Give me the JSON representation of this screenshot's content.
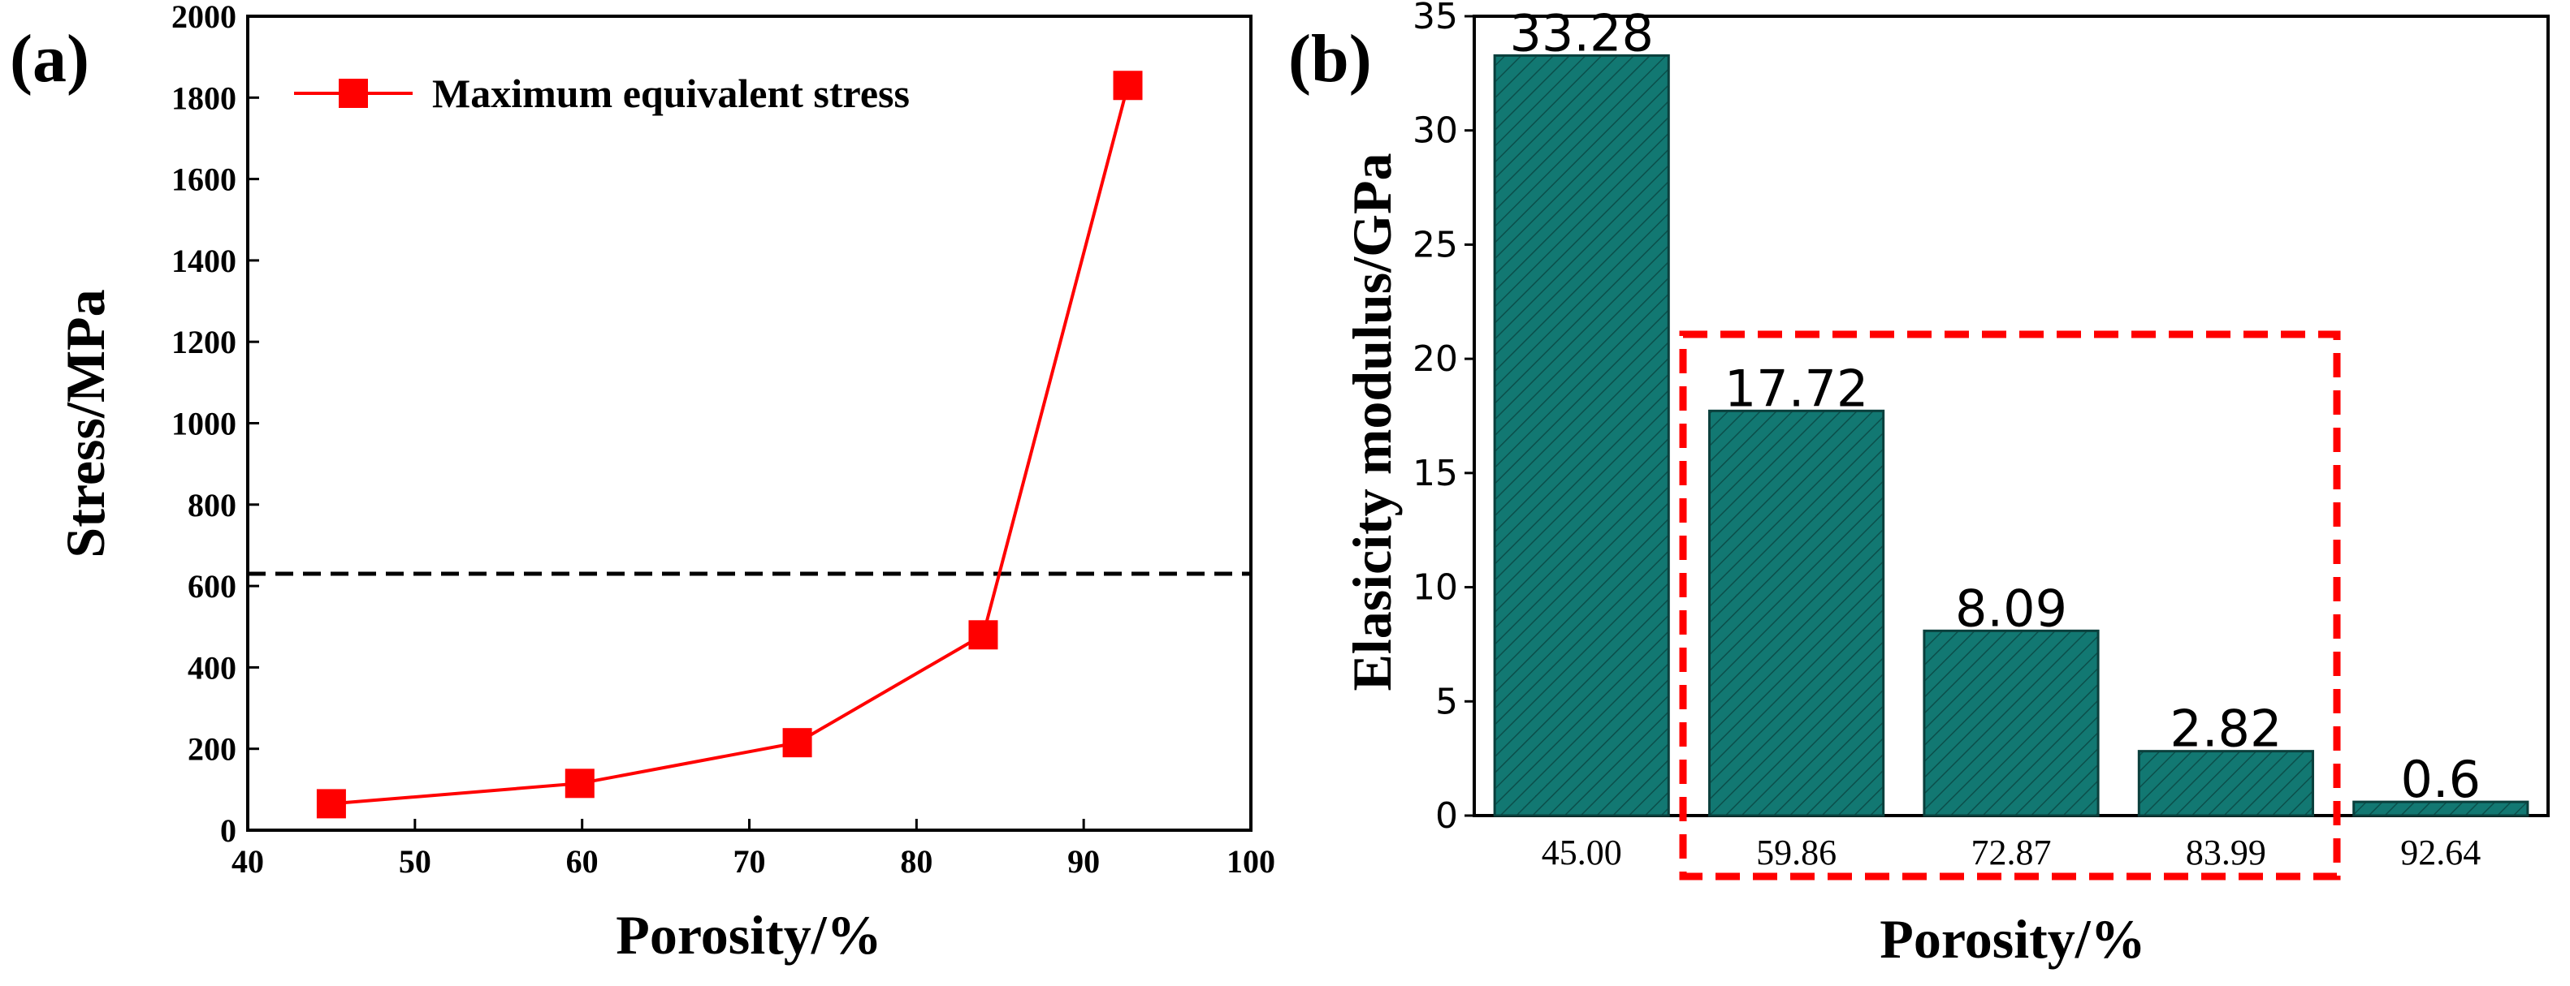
{
  "chart_data": [
    {
      "panel": "(a)",
      "type": "line",
      "xlabel": "Porosity/%",
      "ylabel": "Stress/MPa",
      "xlim": [
        40,
        100
      ],
      "ylim": [
        0,
        2000
      ],
      "xticks": [
        40,
        50,
        60,
        70,
        80,
        90,
        100
      ],
      "yticks": [
        0,
        200,
        400,
        600,
        800,
        1000,
        1200,
        1400,
        1600,
        1800,
        2000
      ],
      "grid": false,
      "legend": "top-left",
      "series": [
        {
          "name": "Maximum equivalent stress",
          "color": "#ff0000",
          "marker": "square",
          "x": [
            45.0,
            59.86,
            72.87,
            83.99,
            92.64
          ],
          "y": [
            65,
            115,
            215,
            480,
            1830
          ]
        }
      ],
      "reference_line": {
        "type": "horizontal",
        "y": 630,
        "style": "dashed",
        "color": "#000000"
      }
    },
    {
      "panel": "(b)",
      "type": "bar",
      "xlabel": "Porosity/%",
      "ylabel": "Elasicity modulus/GPa",
      "categories": [
        "45.00",
        "59.86",
        "72.87",
        "83.99",
        "92.64"
      ],
      "values": [
        33.28,
        17.72,
        8.09,
        2.82,
        0.6
      ],
      "value_labels": [
        "33.28",
        "17.72",
        "8.09",
        "2.82",
        "0.6"
      ],
      "ylim": [
        0,
        35
      ],
      "yticks": [
        0,
        5,
        10,
        15,
        20,
        25,
        30,
        35
      ],
      "grid": false,
      "bar_color": "#127872",
      "bar_hatch": "diagonal",
      "highlight": {
        "categories": [
          "59.86",
          "72.87",
          "83.99"
        ],
        "style": "dashed",
        "color": "#ff0000"
      }
    }
  ]
}
